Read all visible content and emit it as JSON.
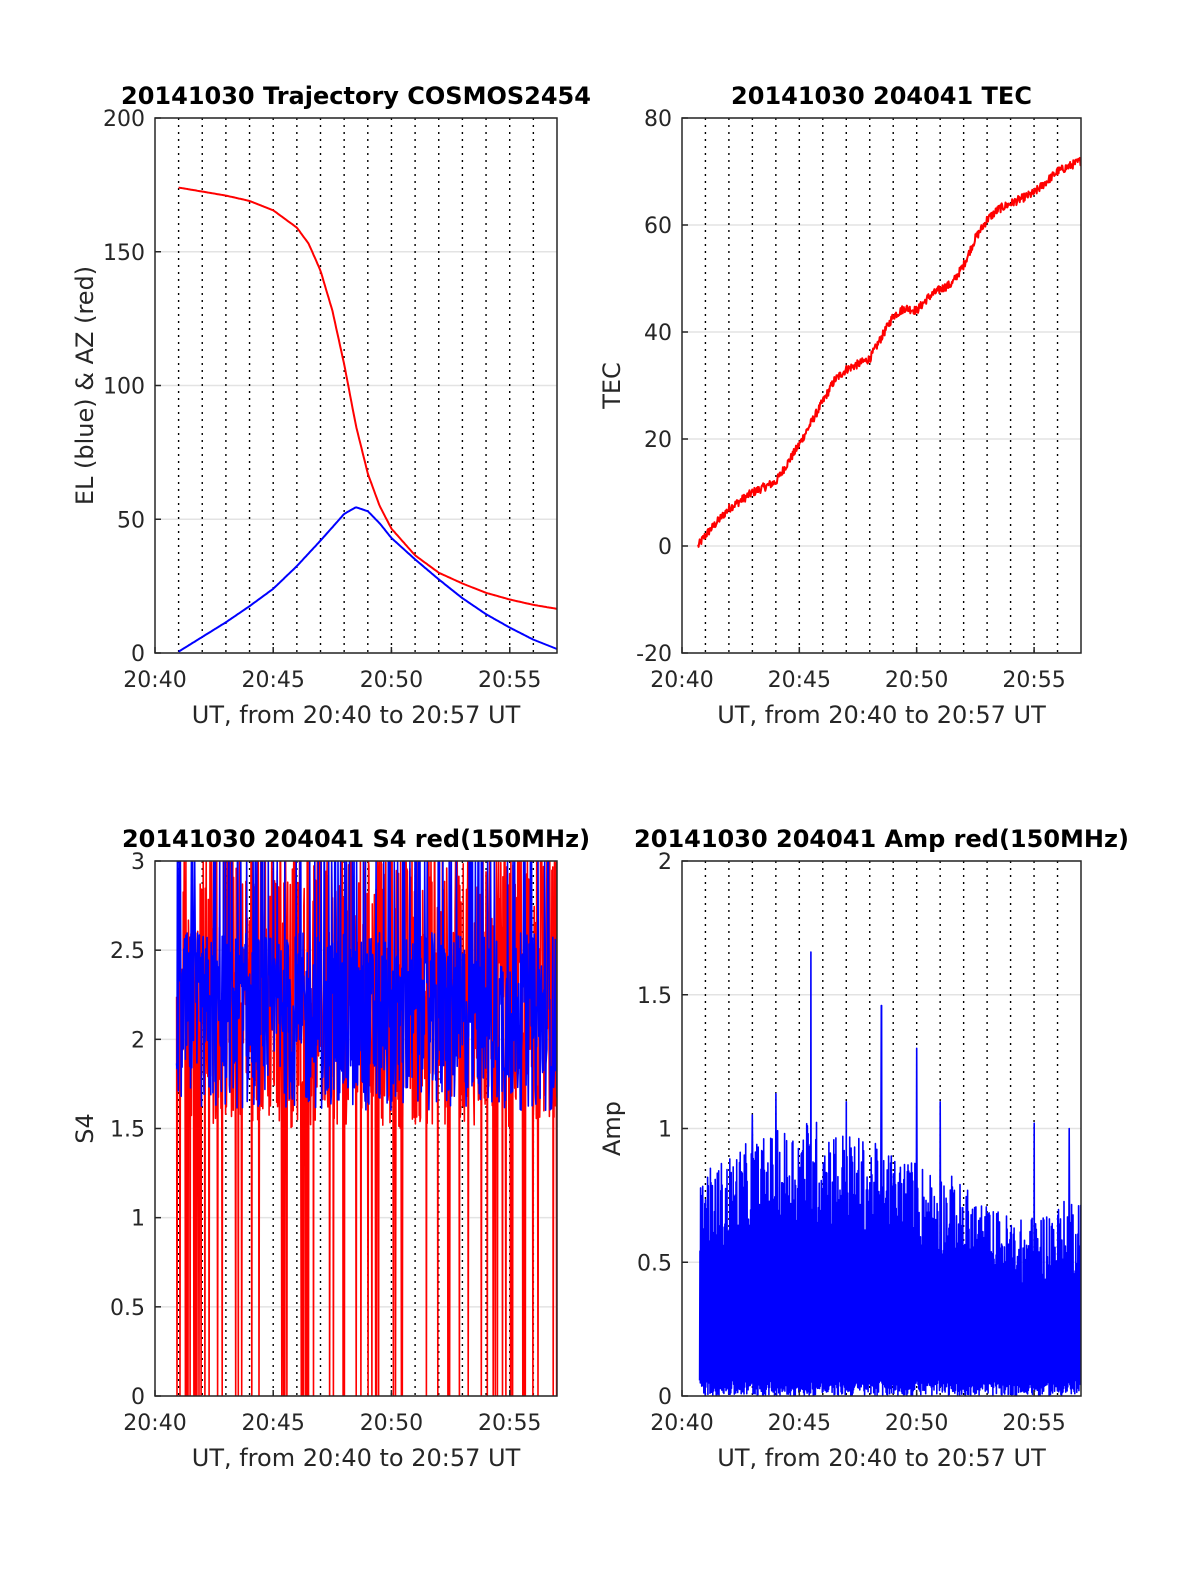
{
  "chart_data": [
    {
      "id": "traj",
      "type": "line",
      "title": "20141030 Trajectory COSMOS2454",
      "xlabel": "UT, from 20:40 to 20:57 UT",
      "ylabel": "EL (blue) & AZ (red)",
      "xlim": [
        20.6667,
        20.95
      ],
      "ylim": [
        0,
        200
      ],
      "xticks": [
        20.6667,
        20.75,
        20.8333,
        20.9167
      ],
      "xticklabels": [
        "20:40",
        "20:45",
        "20:50",
        "20:55"
      ],
      "yticks": [
        0,
        50,
        100,
        150,
        200
      ],
      "yticklabels": [
        "0",
        "50",
        "100",
        "150",
        "200"
      ],
      "grid": "x dotted black, y light gray",
      "series": [
        {
          "color": "#ff0000",
          "x": [
            20.6833,
            20.7167,
            20.7333,
            20.75,
            20.7667,
            20.775,
            20.7833,
            20.7917,
            20.8,
            20.8083,
            20.8167,
            20.825,
            20.8333,
            20.85,
            20.8667,
            20.8833,
            20.9,
            20.9167,
            20.9333,
            20.95
          ],
          "y": [
            174,
            171,
            169,
            165.5,
            159,
            153,
            143,
            128,
            108,
            85,
            67,
            55,
            46.5,
            36.5,
            30,
            26,
            22.5,
            20,
            18,
            16.5
          ]
        },
        {
          "color": "#0000ff",
          "x": [
            20.6833,
            20.7,
            20.7167,
            20.7333,
            20.75,
            20.7667,
            20.7833,
            20.7917,
            20.8,
            20.8083,
            20.8167,
            20.825,
            20.8333,
            20.85,
            20.8667,
            20.8833,
            20.9,
            20.9167,
            20.9333,
            20.95
          ],
          "y": [
            0.5,
            6,
            11.5,
            17.5,
            24,
            32.5,
            42,
            47,
            52,
            54.5,
            53,
            48.5,
            43,
            35,
            27.5,
            20.5,
            14.5,
            9.5,
            5,
            1.5
          ]
        }
      ]
    },
    {
      "id": "tec",
      "type": "line",
      "title": "20141030 204041 TEC",
      "xlabel": "UT, from 20:40 to 20:57 UT",
      "ylabel": "TEC",
      "xlim": [
        20.6667,
        20.95
      ],
      "ylim": [
        -20,
        80
      ],
      "xticks": [
        20.6667,
        20.75,
        20.8333,
        20.9167
      ],
      "xticklabels": [
        "20:40",
        "20:45",
        "20:50",
        "20:55"
      ],
      "yticks": [
        -20,
        0,
        20,
        40,
        60,
        80
      ],
      "yticklabels": [
        "-20",
        "0",
        "20",
        "40",
        "60",
        "80"
      ],
      "grid": "x dotted black, y light gray",
      "series": [
        {
          "color": "#ff0000",
          "x": [
            20.6781,
            20.6833,
            20.7,
            20.7167,
            20.7333,
            20.75,
            20.7583,
            20.7667,
            20.775,
            20.7833,
            20.7917,
            20.8,
            20.8083,
            20.8167,
            20.825,
            20.8333,
            20.8417,
            20.85,
            20.8583,
            20.8667,
            20.875,
            20.8833,
            20.8917,
            20.9,
            20.9083,
            20.9167,
            20.925,
            20.9333,
            20.9417,
            20.95
          ],
          "y": [
            0,
            2,
            7,
            10,
            12,
            19,
            23,
            27,
            31,
            33,
            34,
            35,
            39,
            43,
            44.5,
            44,
            46.5,
            48,
            49,
            52.5,
            57.5,
            61,
            63,
            64,
            65,
            66,
            68,
            70,
            71,
            72
          ]
        }
      ]
    },
    {
      "id": "s4",
      "type": "line",
      "title": "20141030 204041 S4 red(150MHz)",
      "xlabel": "UT, from 20:40 to 20:57 UT",
      "ylabel": "S4",
      "xlim": [
        20.6667,
        20.95
      ],
      "ylim": [
        0,
        3
      ],
      "xticks": [
        20.6667,
        20.75,
        20.8333,
        20.9167
      ],
      "xticklabels": [
        "20:40",
        "20:45",
        "20:50",
        "20:55"
      ],
      "yticks": [
        0,
        0.5,
        1,
        1.5,
        2,
        2.5,
        3
      ],
      "yticklabels": [
        "0",
        "0.5",
        "1",
        "1.5",
        "2",
        "2.5",
        "3"
      ],
      "grid": "x dotted black, y light gray",
      "series": [
        {
          "color": "#ff0000",
          "x_range": [
            20.6819,
            20.95
          ],
          "typical": [
            1.5,
            3.0
          ],
          "min": 0,
          "max": 3
        },
        {
          "color": "#0000ff",
          "x_range": [
            20.6819,
            20.95
          ],
          "typical": [
            1.6,
            2.6
          ],
          "min": 1.1,
          "max": 3
        }
      ]
    },
    {
      "id": "amp",
      "type": "line",
      "title": "20141030 204041 Amp red(150MHz)",
      "xlabel": "UT, from 20:40 to 20:57 UT",
      "ylabel": "Amp",
      "xlim": [
        20.6667,
        20.95
      ],
      "ylim": [
        0,
        2
      ],
      "xticks": [
        20.6667,
        20.75,
        20.8333,
        20.9167
      ],
      "xticklabels": [
        "20:40",
        "20:45",
        "20:50",
        "20:55"
      ],
      "yticks": [
        0,
        0.5,
        1,
        1.5,
        2
      ],
      "yticklabels": [
        "0",
        "0.5",
        "1",
        "1.5",
        "2"
      ],
      "grid": "x dotted black, y light gray",
      "series": [
        {
          "color": "#0000ff",
          "x_range": [
            20.6792,
            20.95
          ],
          "envelope_x": [
            20.6792,
            20.7083,
            20.7333,
            20.7583,
            20.7833,
            20.8083,
            20.8333,
            20.8583,
            20.8833,
            20.9083,
            20.9333,
            20.95
          ],
          "envelope_y": [
            0.75,
            0.85,
            0.9,
            0.95,
            0.9,
            0.85,
            0.8,
            0.75,
            0.65,
            0.6,
            0.65,
            0.7
          ],
          "peaks": [
            [
              20.7583,
              1.66
            ],
            [
              20.8083,
              1.46
            ],
            [
              20.8333,
              1.3
            ],
            [
              20.7167,
              1.05
            ],
            [
              20.7333,
              1.13
            ],
            [
              20.7833,
              1.1
            ],
            [
              20.85,
              1.1
            ],
            [
              20.9167,
              1.02
            ],
            [
              20.9417,
              1.0
            ]
          ]
        }
      ]
    }
  ]
}
